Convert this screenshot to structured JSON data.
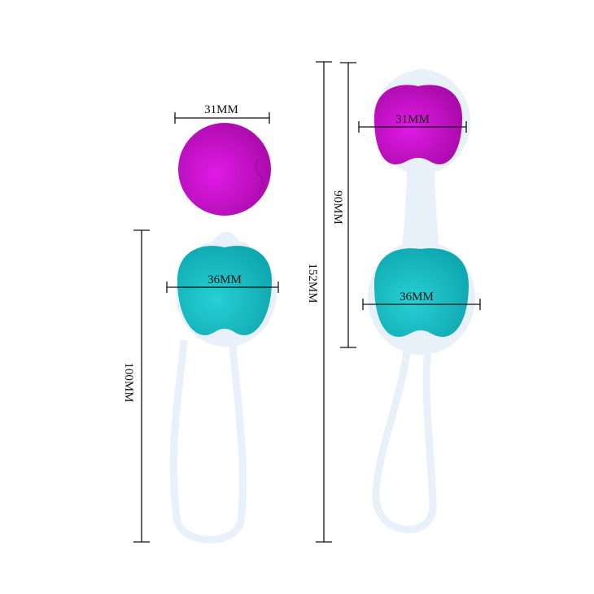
{
  "colors": {
    "purple": "#c812cc",
    "teal": "#1cc0c6",
    "silicone": "#e8f0fa",
    "line": "#111111"
  },
  "dimensions": {
    "single_ball_diameter": "31MM",
    "single_kegel_ball_width": "36MM",
    "single_kegel_length": "100MM",
    "double_kegel_total_length": "152MM",
    "double_kegel_body_length": "90MM",
    "double_top_ball_width": "31MM",
    "double_bottom_ball_width": "36MM"
  }
}
